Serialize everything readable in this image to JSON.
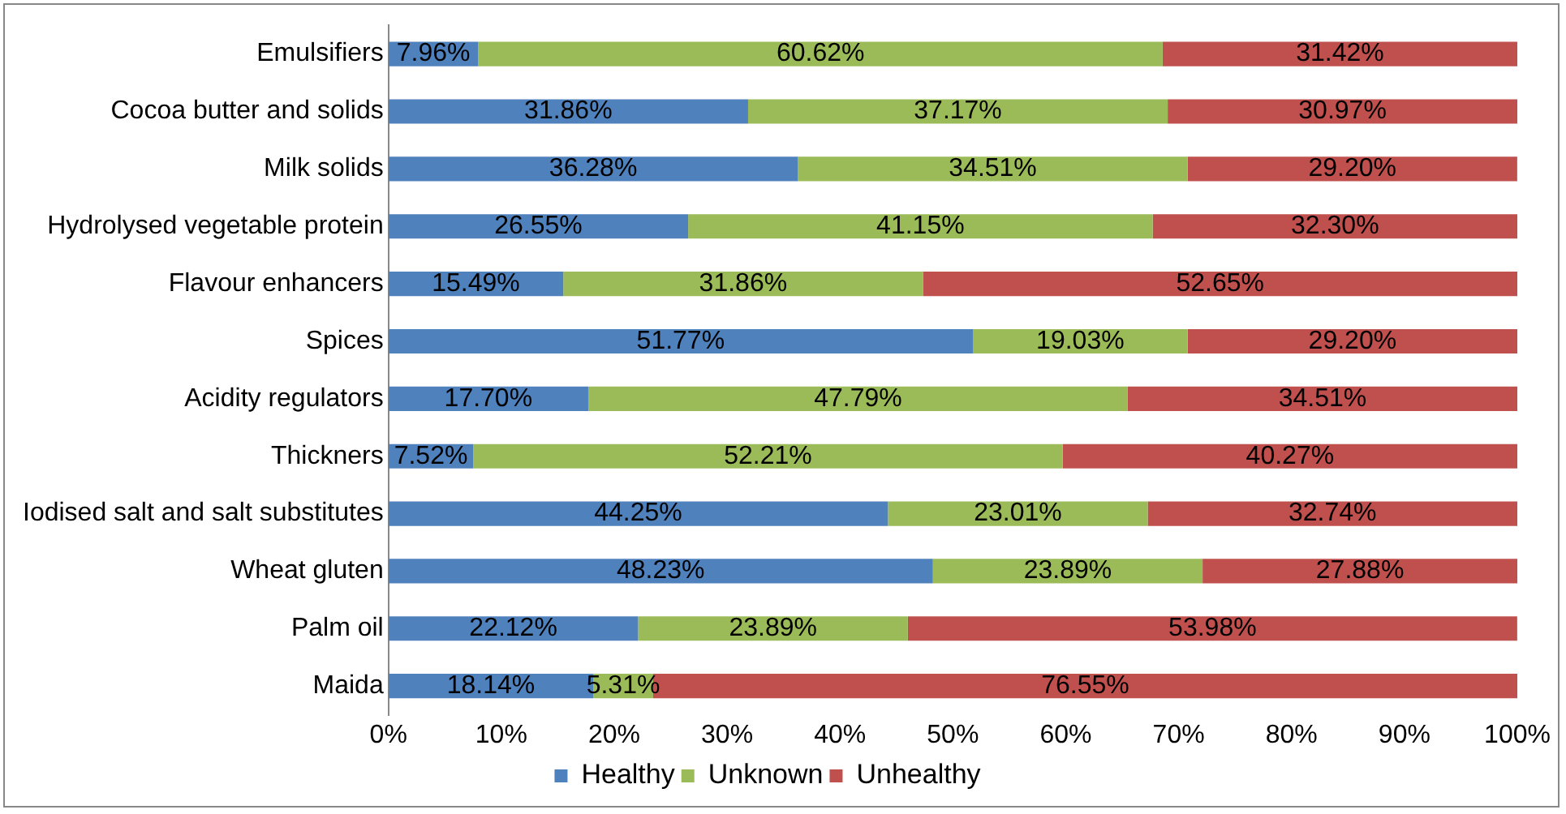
{
  "chart_data": {
    "type": "bar",
    "orientation": "horizontal",
    "stacked": true,
    "categories": [
      "Emulsifiers",
      "Cocoa butter and solids",
      "Milk solids",
      "Hydrolysed vegetable protein",
      "Flavour enhancers",
      "Spices",
      "Acidity regulators",
      "Thickners",
      "Iodised salt and salt substitutes",
      "Wheat gluten",
      "Palm oil",
      "Maida"
    ],
    "series": [
      {
        "name": "Healthy",
        "color": "#4f81bd",
        "values": [
          7.96,
          31.86,
          36.28,
          26.55,
          15.49,
          51.77,
          17.7,
          7.52,
          44.25,
          48.23,
          22.12,
          18.14
        ],
        "value_labels": [
          "7.96%",
          "31.86%",
          "36.28%",
          "26.55%",
          "15.49%",
          "51.77%",
          "17.70%",
          "7.52%",
          "44.25%",
          "48.23%",
          "22.12%",
          "18.14%"
        ]
      },
      {
        "name": "Unknown",
        "color": "#9bbb59",
        "values": [
          60.62,
          37.17,
          34.51,
          41.15,
          31.86,
          19.03,
          47.79,
          52.21,
          23.01,
          23.89,
          23.89,
          5.31
        ],
        "value_labels": [
          "60.62%",
          "37.17%",
          "34.51%",
          "41.15%",
          "31.86%",
          "19.03%",
          "47.79%",
          "52.21%",
          "23.01%",
          "23.89%",
          "23.89%",
          "5.31%"
        ]
      },
      {
        "name": "Unhealthy",
        "color": "#c0504d",
        "values": [
          31.42,
          30.97,
          29.2,
          32.3,
          52.65,
          29.2,
          34.51,
          40.27,
          32.74,
          27.88,
          53.98,
          76.55
        ],
        "value_labels": [
          "31.42%",
          "30.97%",
          "29.20%",
          "32.30%",
          "52.65%",
          "29.20%",
          "34.51%",
          "40.27%",
          "32.74%",
          "27.88%",
          "53.98%",
          "76.55%"
        ]
      }
    ],
    "xlim": [
      0,
      100
    ],
    "xticks": [
      {
        "value": 0,
        "label": "0%"
      },
      {
        "value": 10,
        "label": "10%"
      },
      {
        "value": 20,
        "label": "20%"
      },
      {
        "value": 30,
        "label": "30%"
      },
      {
        "value": 40,
        "label": "40%"
      },
      {
        "value": 50,
        "label": "50%"
      },
      {
        "value": 60,
        "label": "60%"
      },
      {
        "value": 70,
        "label": "70%"
      },
      {
        "value": 80,
        "label": "80%"
      },
      {
        "value": 90,
        "label": "90%"
      },
      {
        "value": 100,
        "label": "100%"
      }
    ],
    "grid": false,
    "legend": "bottom"
  }
}
